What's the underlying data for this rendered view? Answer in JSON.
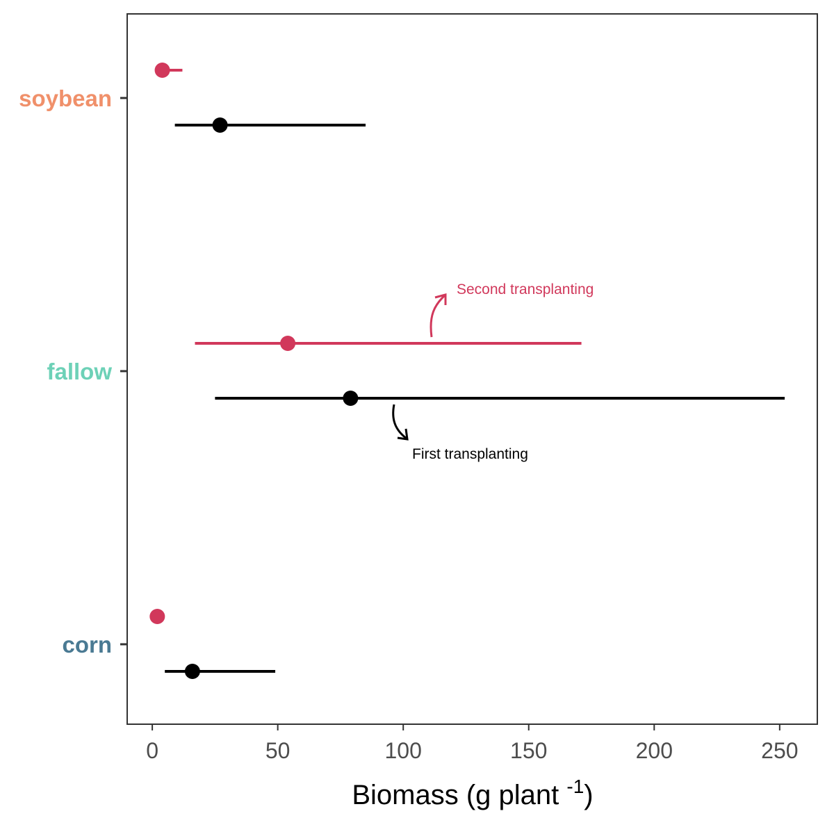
{
  "chart_data": {
    "type": "scatter",
    "subtype": "point-range (median with interval), horizontal",
    "title": "",
    "xlabel": {
      "text": "Biomass (g plant ",
      "superscript": "-1",
      "suffix": ")"
    },
    "ylabel": "",
    "xlim": [
      -10,
      265
    ],
    "xticks": [
      0,
      50,
      100,
      150,
      200,
      250
    ],
    "grid": false,
    "legend": "none",
    "categories": [
      {
        "label": "corn",
        "color": "#4a7a93"
      },
      {
        "label": "fallow",
        "color": "#6dd1b7"
      },
      {
        "label": "soybean",
        "color": "#f0906a"
      }
    ],
    "series": [
      {
        "color": "#d1385b",
        "points": [
          {
            "category": "corn",
            "x": 2,
            "low": 2,
            "high": 2
          },
          {
            "category": "fallow",
            "x": 54,
            "low": 17,
            "high": 171
          },
          {
            "category": "soybean",
            "x": 4,
            "low": 4,
            "high": 12
          }
        ]
      },
      {
        "color": "#000000",
        "points": [
          {
            "category": "corn",
            "x": 16,
            "low": 5,
            "high": 49
          },
          {
            "category": "fallow",
            "x": 79,
            "low": 25,
            "high": 252
          },
          {
            "category": "soybean",
            "x": 27,
            "low": 9,
            "high": 85
          }
        ]
      }
    ],
    "annotations": [
      {
        "text": "Second transplanting",
        "color": "#d1385b"
      },
      {
        "text": "First transplanting",
        "color": "#000000"
      }
    ]
  }
}
